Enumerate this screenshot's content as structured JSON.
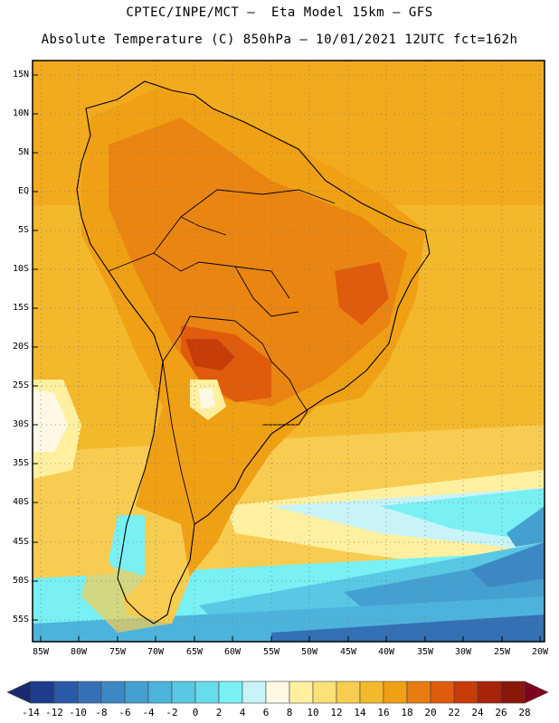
{
  "header": {
    "line1": "CPTEC/INPE/MCT –  Eta Model 15km – GFS",
    "line2": "Absolute Temperature (C) 850hPa – 10/01/2021 12UTC fct=162h"
  },
  "map": {
    "region": "South America",
    "lat_labels": [
      "15N",
      "10N",
      "5N",
      "EQ",
      "5S",
      "10S",
      "15S",
      "20S",
      "25S",
      "30S",
      "35S",
      "40S",
      "45S",
      "50S",
      "55S"
    ],
    "lon_labels": [
      "85W",
      "80W",
      "75W",
      "70W",
      "65W",
      "60W",
      "55W",
      "50W",
      "45W",
      "40W",
      "35W",
      "30W",
      "25W",
      "20W"
    ],
    "grid": "dotted"
  },
  "colorbar": {
    "ticks": [
      "-14",
      "-12",
      "-10",
      "-8",
      "-6",
      "-4",
      "-2",
      "0",
      "2",
      "4",
      "6",
      "8",
      "10",
      "12",
      "14",
      "16",
      "18",
      "20",
      "22",
      "24",
      "26",
      "28"
    ],
    "colors": [
      "#1e3c8c",
      "#2a5aa8",
      "#3470b4",
      "#3c88c4",
      "#44a0d0",
      "#4cb4dc",
      "#58c8e4",
      "#66dcec",
      "#78f0f4",
      "#c8f4f8",
      "#fff8e4",
      "#fff0a0",
      "#fce078",
      "#f8cc50",
      "#f4b82c",
      "#f0a014",
      "#e87c10",
      "#e05c0c",
      "#c83c08",
      "#a82408",
      "#881808"
    ],
    "under_color": "#1a2a70",
    "over_color": "#800020"
  }
}
